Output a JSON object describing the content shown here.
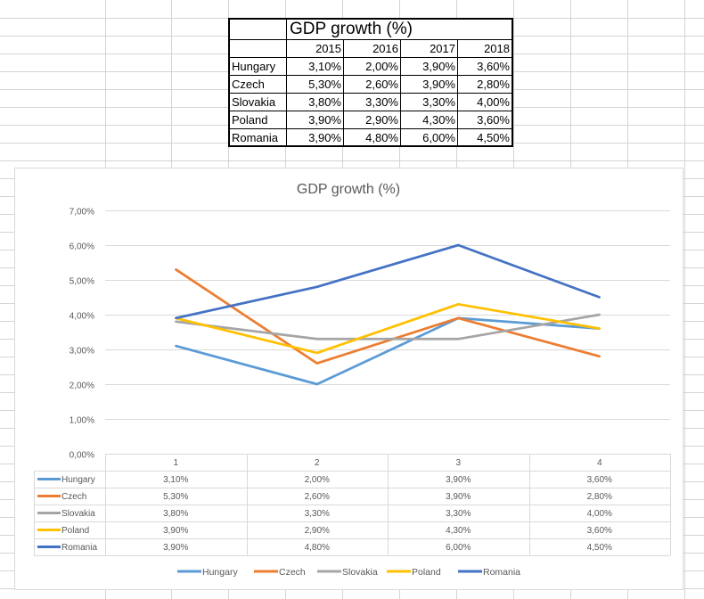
{
  "sheet": {
    "title": "GDP growth (%)",
    "years": [
      "2015",
      "2016",
      "2017",
      "2018"
    ],
    "rows": [
      {
        "country": "Hungary",
        "values": [
          "3,10%",
          "2,00%",
          "3,90%",
          "3,60%"
        ]
      },
      {
        "country": "Czech",
        "values": [
          "5,30%",
          "2,60%",
          "3,90%",
          "2,80%"
        ]
      },
      {
        "country": "Slovakia",
        "values": [
          "3,80%",
          "3,30%",
          "3,30%",
          "4,00%"
        ]
      },
      {
        "country": "Poland",
        "values": [
          "3,90%",
          "2,90%",
          "4,30%",
          "3,60%"
        ]
      },
      {
        "country": "Romania",
        "values": [
          "3,90%",
          "4,80%",
          "6,00%",
          "4,50%"
        ]
      }
    ]
  },
  "chart_data": {
    "type": "line",
    "title": "GDP growth (%)",
    "xlabel": "",
    "ylabel": "",
    "categories": [
      "1",
      "2",
      "3",
      "4"
    ],
    "ylim": [
      0,
      7
    ],
    "y_ticks": [
      "0,00%",
      "1,00%",
      "2,00%",
      "3,00%",
      "4,00%",
      "5,00%",
      "6,00%",
      "7,00%"
    ],
    "grid": true,
    "legend": "bottom",
    "data_table": true,
    "series": [
      {
        "name": "Hungary",
        "color": "#5B9BD5",
        "values": [
          3.1,
          2.0,
          3.9,
          3.6
        ],
        "labels": [
          "3,10%",
          "2,00%",
          "3,90%",
          "3,60%"
        ]
      },
      {
        "name": "Czech",
        "color": "#ED7D31",
        "values": [
          5.3,
          2.6,
          3.9,
          2.8
        ],
        "labels": [
          "5,30%",
          "2,60%",
          "3,90%",
          "2,80%"
        ]
      },
      {
        "name": "Slovakia",
        "color": "#A5A5A5",
        "values": [
          3.8,
          3.3,
          3.3,
          4.0
        ],
        "labels": [
          "3,80%",
          "3,30%",
          "3,30%",
          "4,00%"
        ]
      },
      {
        "name": "Poland",
        "color": "#FFC000",
        "values": [
          3.9,
          2.9,
          4.3,
          3.6
        ],
        "labels": [
          "3,90%",
          "2,90%",
          "4,30%",
          "3,60%"
        ]
      },
      {
        "name": "Romania",
        "color": "#4472C4",
        "values": [
          3.9,
          4.8,
          6.0,
          4.5
        ],
        "labels": [
          "3,90%",
          "4,80%",
          "6,00%",
          "4,50%"
        ]
      }
    ]
  }
}
